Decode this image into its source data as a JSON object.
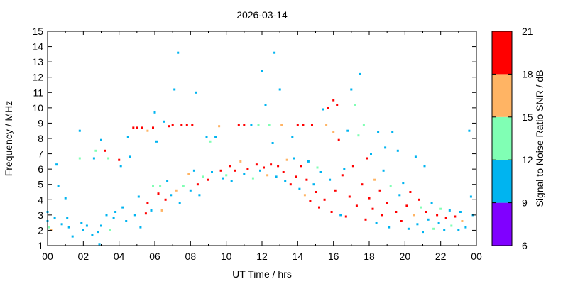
{
  "chart_data": {
    "type": "scatter",
    "title": "2026-03-14",
    "xlabel": "UT Time / hrs",
    "ylabel": "Frequency / MHz",
    "colorbar_label": "Signal to Noise Ratio SNR / dB",
    "xlim": [
      0,
      24
    ],
    "ylim": [
      1,
      15
    ],
    "x_ticks": [
      "00",
      "02",
      "04",
      "06",
      "08",
      "10",
      "12",
      "14",
      "16",
      "18",
      "20",
      "22",
      "00"
    ],
    "y_ticks": [
      "1",
      "2",
      "3",
      "4",
      "5",
      "6",
      "7",
      "8",
      "9",
      "10",
      "11",
      "12",
      "13",
      "14",
      "15"
    ],
    "colorbar": {
      "range": [
        6,
        21
      ],
      "ticks": [
        "6",
        "9",
        "12",
        "15",
        "18",
        "21"
      ],
      "bands": [
        {
          "from": 6,
          "to": 9,
          "color": "#8000ff"
        },
        {
          "from": 9,
          "to": 12,
          "color": "#00b4f0"
        },
        {
          "from": 12,
          "to": 15,
          "color": "#80ffb4"
        },
        {
          "from": 15,
          "to": 18,
          "color": "#ffb464"
        },
        {
          "from": 18,
          "to": 21,
          "color": "#ff0000"
        }
      ]
    },
    "points": [
      [
        0.0,
        3.2,
        10
      ],
      [
        0.0,
        2.6,
        10
      ],
      [
        0.1,
        2.2,
        13
      ],
      [
        0.2,
        2.0,
        16
      ],
      [
        0.4,
        2.8,
        10
      ],
      [
        0.5,
        6.3,
        10
      ],
      [
        0.6,
        4.9,
        10
      ],
      [
        0.8,
        2.4,
        10
      ],
      [
        1.0,
        4.1,
        10
      ],
      [
        1.1,
        2.8,
        10
      ],
      [
        1.2,
        2.2,
        10
      ],
      [
        1.4,
        1.6,
        10
      ],
      [
        1.8,
        8.5,
        10
      ],
      [
        1.8,
        6.7,
        13
      ],
      [
        1.9,
        2.5,
        10
      ],
      [
        2.0,
        2.0,
        10
      ],
      [
        2.2,
        2.3,
        10
      ],
      [
        2.5,
        1.7,
        10
      ],
      [
        2.6,
        6.7,
        10
      ],
      [
        2.7,
        7.2,
        13
      ],
      [
        2.8,
        1.9,
        10
      ],
      [
        2.9,
        1.1,
        10
      ],
      [
        3.0,
        2.3,
        10
      ],
      [
        3.0,
        7.9,
        10
      ],
      [
        3.2,
        7.2,
        19
      ],
      [
        3.3,
        3.0,
        10
      ],
      [
        3.4,
        6.7,
        13
      ],
      [
        3.5,
        2.0,
        13
      ],
      [
        3.7,
        2.8,
        10
      ],
      [
        3.8,
        3.2,
        10
      ],
      [
        4.0,
        6.6,
        19
      ],
      [
        4.1,
        6.2,
        10
      ],
      [
        4.2,
        3.5,
        10
      ],
      [
        4.4,
        2.6,
        10
      ],
      [
        4.5,
        8.1,
        10
      ],
      [
        4.6,
        6.8,
        10
      ],
      [
        4.8,
        8.7,
        19
      ],
      [
        4.9,
        3.0,
        10
      ],
      [
        5.0,
        8.7,
        19
      ],
      [
        5.1,
        4.2,
        10
      ],
      [
        5.2,
        2.2,
        10
      ],
      [
        5.3,
        8.7,
        19
      ],
      [
        5.5,
        3.1,
        19
      ],
      [
        5.6,
        3.8,
        19
      ],
      [
        5.6,
        8.5,
        16
      ],
      [
        5.8,
        3.3,
        10
      ],
      [
        5.9,
        8.7,
        19
      ],
      [
        5.9,
        4.9,
        13
      ],
      [
        6.0,
        9.7,
        10
      ],
      [
        6.1,
        7.8,
        10
      ],
      [
        6.2,
        4.4,
        19
      ],
      [
        6.3,
        4.9,
        13
      ],
      [
        6.4,
        3.3,
        16
      ],
      [
        6.5,
        9.1,
        10
      ],
      [
        6.6,
        4.0,
        19
      ],
      [
        6.7,
        5.2,
        10
      ],
      [
        6.8,
        8.8,
        19
      ],
      [
        6.9,
        4.3,
        10
      ],
      [
        7.0,
        8.9,
        19
      ],
      [
        7.1,
        11.2,
        10
      ],
      [
        7.2,
        4.6,
        16
      ],
      [
        7.3,
        13.6,
        10
      ],
      [
        7.4,
        3.8,
        10
      ],
      [
        7.5,
        8.9,
        19
      ],
      [
        7.6,
        4.9,
        13
      ],
      [
        7.8,
        8.9,
        19
      ],
      [
        7.9,
        5.7,
        16
      ],
      [
        8.0,
        4.6,
        10
      ],
      [
        8.1,
        8.9,
        19
      ],
      [
        8.2,
        5.9,
        10
      ],
      [
        8.3,
        11.0,
        10
      ],
      [
        8.4,
        5.0,
        19
      ],
      [
        8.5,
        4.3,
        10
      ],
      [
        8.7,
        5.5,
        13
      ],
      [
        8.9,
        8.1,
        10
      ],
      [
        9.0,
        5.3,
        19
      ],
      [
        9.1,
        7.8,
        13
      ],
      [
        9.2,
        5.8,
        10
      ],
      [
        9.4,
        8.1,
        10
      ],
      [
        9.6,
        8.8,
        16
      ],
      [
        9.7,
        5.9,
        19
      ],
      [
        9.8,
        5.4,
        10
      ],
      [
        10.0,
        5.6,
        13
      ],
      [
        10.2,
        6.2,
        19
      ],
      [
        10.3,
        5.2,
        10
      ],
      [
        10.5,
        5.9,
        19
      ],
      [
        10.7,
        8.9,
        19
      ],
      [
        10.8,
        6.5,
        16
      ],
      [
        11.0,
        8.9,
        19
      ],
      [
        11.0,
        5.7,
        10
      ],
      [
        11.2,
        6.0,
        19
      ],
      [
        11.4,
        8.9,
        10
      ],
      [
        11.5,
        5.4,
        13
      ],
      [
        11.7,
        6.3,
        19
      ],
      [
        11.8,
        8.9,
        13
      ],
      [
        11.9,
        5.9,
        10
      ],
      [
        12.0,
        12.4,
        10
      ],
      [
        12.1,
        6.1,
        19
      ],
      [
        12.2,
        10.2,
        10
      ],
      [
        12.3,
        5.6,
        16
      ],
      [
        12.4,
        8.9,
        13
      ],
      [
        12.5,
        6.3,
        19
      ],
      [
        12.6,
        7.7,
        10
      ],
      [
        12.7,
        13.6,
        10
      ],
      [
        12.8,
        5.5,
        10
      ],
      [
        12.9,
        6.2,
        19
      ],
      [
        13.0,
        11.2,
        10
      ],
      [
        13.1,
        8.9,
        16
      ],
      [
        13.2,
        5.8,
        19
      ],
      [
        13.3,
        5.2,
        10
      ],
      [
        13.4,
        6.6,
        16
      ],
      [
        13.6,
        5.0,
        19
      ],
      [
        13.7,
        8.1,
        10
      ],
      [
        13.8,
        6.7,
        10
      ],
      [
        13.9,
        5.5,
        19
      ],
      [
        14.0,
        8.9,
        19
      ],
      [
        14.1,
        4.7,
        10
      ],
      [
        14.2,
        6.2,
        19
      ],
      [
        14.3,
        8.9,
        19
      ],
      [
        14.4,
        4.3,
        16
      ],
      [
        14.5,
        5.3,
        19
      ],
      [
        14.6,
        6.5,
        10
      ],
      [
        14.7,
        3.9,
        19
      ],
      [
        14.8,
        8.9,
        19
      ],
      [
        14.9,
        5.0,
        10
      ],
      [
        15.0,
        4.5,
        19
      ],
      [
        15.1,
        6.1,
        13
      ],
      [
        15.2,
        3.5,
        19
      ],
      [
        15.3,
        5.8,
        10
      ],
      [
        15.4,
        9.9,
        10
      ],
      [
        15.5,
        4.0,
        19
      ],
      [
        15.6,
        8.9,
        16
      ],
      [
        15.7,
        10.0,
        19
      ],
      [
        15.8,
        5.3,
        10
      ],
      [
        15.9,
        3.2,
        19
      ],
      [
        16.0,
        8.4,
        16
      ],
      [
        16.0,
        10.5,
        19
      ],
      [
        16.1,
        4.6,
        19
      ],
      [
        16.2,
        10.2,
        19
      ],
      [
        16.3,
        7.9,
        19
      ],
      [
        16.4,
        3.0,
        10
      ],
      [
        16.5,
        5.6,
        19
      ],
      [
        16.6,
        6.0,
        10
      ],
      [
        16.7,
        2.9,
        19
      ],
      [
        16.8,
        8.5,
        10
      ],
      [
        16.9,
        4.2,
        19
      ],
      [
        17.0,
        11.2,
        10
      ],
      [
        17.1,
        6.2,
        19
      ],
      [
        17.2,
        10.2,
        13
      ],
      [
        17.3,
        3.6,
        19
      ],
      [
        17.4,
        8.2,
        13
      ],
      [
        17.5,
        12.2,
        10
      ],
      [
        17.6,
        5.0,
        19
      ],
      [
        17.7,
        8.9,
        13
      ],
      [
        17.8,
        2.7,
        19
      ],
      [
        17.9,
        6.7,
        19
      ],
      [
        18.0,
        4.1,
        19
      ],
      [
        18.1,
        7.0,
        10
      ],
      [
        18.2,
        3.4,
        19
      ],
      [
        18.3,
        5.3,
        16
      ],
      [
        18.4,
        2.5,
        10
      ],
      [
        18.5,
        8.4,
        10
      ],
      [
        18.6,
        4.6,
        19
      ],
      [
        18.7,
        3.0,
        19
      ],
      [
        18.8,
        5.9,
        10
      ],
      [
        18.9,
        7.4,
        10
      ],
      [
        19.0,
        3.8,
        19
      ],
      [
        19.1,
        2.2,
        10
      ],
      [
        19.2,
        4.9,
        13
      ],
      [
        19.3,
        8.4,
        10
      ],
      [
        19.5,
        3.2,
        19
      ],
      [
        19.6,
        7.2,
        10
      ],
      [
        19.7,
        4.3,
        10
      ],
      [
        19.8,
        2.6,
        19
      ],
      [
        19.9,
        5.1,
        10
      ],
      [
        20.1,
        3.6,
        19
      ],
      [
        20.2,
        2.1,
        10
      ],
      [
        20.3,
        4.5,
        19
      ],
      [
        20.5,
        3.0,
        16
      ],
      [
        20.6,
        6.8,
        10
      ],
      [
        20.7,
        2.4,
        10
      ],
      [
        20.8,
        4.0,
        19
      ],
      [
        20.9,
        3.5,
        13
      ],
      [
        21.0,
        1.9,
        10
      ],
      [
        21.1,
        6.2,
        10
      ],
      [
        21.2,
        3.2,
        19
      ],
      [
        21.3,
        2.7,
        10
      ],
      [
        21.5,
        3.8,
        10
      ],
      [
        21.6,
        2.1,
        13
      ],
      [
        21.8,
        3.0,
        19
      ],
      [
        21.9,
        2.5,
        10
      ],
      [
        22.0,
        3.4,
        13
      ],
      [
        22.2,
        2.0,
        10
      ],
      [
        22.3,
        2.8,
        19
      ],
      [
        22.5,
        3.3,
        10
      ],
      [
        22.6,
        2.3,
        13
      ],
      [
        22.8,
        2.9,
        19
      ],
      [
        23.0,
        2.0,
        10
      ],
      [
        23.1,
        3.2,
        10
      ],
      [
        23.2,
        2.6,
        16
      ],
      [
        23.4,
        2.2,
        10
      ],
      [
        23.6,
        8.5,
        10
      ],
      [
        23.7,
        4.2,
        10
      ],
      [
        23.8,
        3.0,
        10
      ]
    ]
  }
}
